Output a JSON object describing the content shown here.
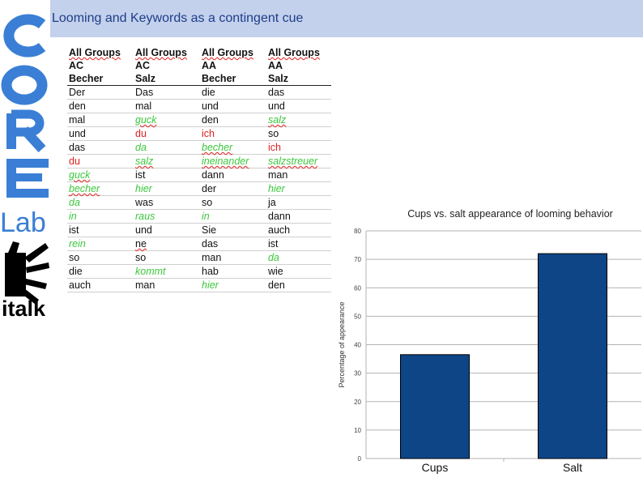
{
  "slide_title": "Looming and Keywords as a contingent cue",
  "logo": {
    "top_text": "CORE",
    "lab_text": "Lab",
    "bottom_text": "italk"
  },
  "table": {
    "header_rows": [
      [
        "All Groups",
        "All Groups",
        "All Groups",
        "All Groups"
      ],
      [
        "AC",
        "AC",
        "AA",
        "AA"
      ],
      [
        "Becher",
        "Salz",
        "Becher",
        "Salz"
      ]
    ],
    "rows": [
      [
        {
          "t": "Der"
        },
        {
          "t": "Das"
        },
        {
          "t": "die"
        },
        {
          "t": "das"
        }
      ],
      [
        {
          "t": "den"
        },
        {
          "t": "mal"
        },
        {
          "t": "und"
        },
        {
          "t": "und"
        }
      ],
      [
        {
          "t": "mal"
        },
        {
          "t": "guck",
          "c": "green",
          "w": true
        },
        {
          "t": "den"
        },
        {
          "t": "salz",
          "c": "green",
          "w": true
        }
      ],
      [
        {
          "t": "und"
        },
        {
          "t": "du",
          "c": "red"
        },
        {
          "t": "ich",
          "c": "red"
        },
        {
          "t": "so"
        }
      ],
      [
        {
          "t": "das"
        },
        {
          "t": "da",
          "c": "green"
        },
        {
          "t": "becher",
          "c": "green",
          "w": true
        },
        {
          "t": "ich",
          "c": "red"
        }
      ],
      [
        {
          "t": "du",
          "c": "red"
        },
        {
          "t": "salz",
          "c": "green",
          "w": true
        },
        {
          "t": "ineinander",
          "c": "green",
          "w": true
        },
        {
          "t": "salzstreuer",
          "c": "green",
          "w": true
        }
      ],
      [
        {
          "t": "guck",
          "c": "green",
          "w": true
        },
        {
          "t": "ist"
        },
        {
          "t": "dann"
        },
        {
          "t": "man"
        }
      ],
      [
        {
          "t": "becher",
          "c": "green",
          "w": true
        },
        {
          "t": "hier",
          "c": "green"
        },
        {
          "t": "der"
        },
        {
          "t": "hier",
          "c": "green"
        }
      ],
      [
        {
          "t": "da",
          "c": "green"
        },
        {
          "t": "was"
        },
        {
          "t": "so"
        },
        {
          "t": "ja"
        }
      ],
      [
        {
          "t": "in",
          "c": "green"
        },
        {
          "t": "raus",
          "c": "green"
        },
        {
          "t": "in",
          "c": "green"
        },
        {
          "t": "dann"
        }
      ],
      [
        {
          "t": "ist"
        },
        {
          "t": "und"
        },
        {
          "t": "Sie"
        },
        {
          "t": "auch"
        }
      ],
      [
        {
          "t": "rein",
          "c": "green"
        },
        {
          "t": "ne",
          "w": true
        },
        {
          "t": "das"
        },
        {
          "t": "ist"
        }
      ],
      [
        {
          "t": "so"
        },
        {
          "t": "so"
        },
        {
          "t": "man"
        },
        {
          "t": "da",
          "c": "green"
        }
      ],
      [
        {
          "t": "die"
        },
        {
          "t": "kommt",
          "c": "green"
        },
        {
          "t": "hab"
        },
        {
          "t": "wie"
        }
      ],
      [
        {
          "t": "auch"
        },
        {
          "t": "man"
        },
        {
          "t": "hier",
          "c": "green"
        },
        {
          "t": "den"
        }
      ]
    ]
  },
  "colors": {
    "green_word": "#3cc83c",
    "red_word": "#e02020",
    "bar": "#0d4587",
    "title_bar": "#c3d1ec"
  },
  "chart_data": {
    "type": "bar",
    "title": "Cups vs. salt appearance of looming behavior",
    "ylabel": "Percentage of appearance",
    "xlabel": "",
    "categories": [
      "Cups",
      "Salt"
    ],
    "values": [
      36.5,
      72
    ],
    "ylim": [
      0,
      80
    ],
    "yticks": [
      0,
      10,
      20,
      30,
      40,
      50,
      60,
      70,
      80
    ],
    "grid": true,
    "legend": "none"
  }
}
